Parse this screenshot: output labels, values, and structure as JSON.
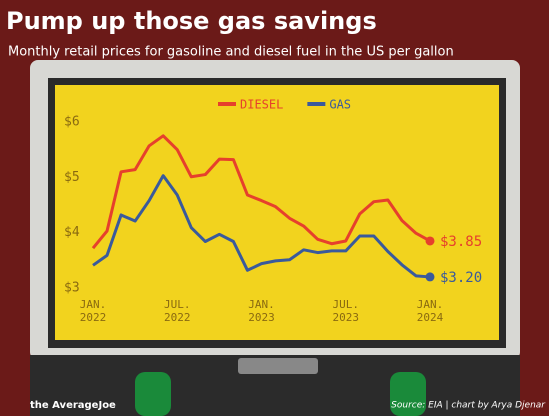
{
  "chart_data": {
    "type": "line",
    "title": "Pump up those gas savings",
    "subtitle": "Monthly retail prices for gasoline and diesel fuel in the US per gallon",
    "categories": [
      "JAN. 2022",
      null,
      null,
      null,
      null,
      null,
      "JUL. 2022",
      null,
      null,
      null,
      null,
      null,
      "JAN. 2023",
      null,
      null,
      null,
      null,
      null,
      "JUL. 2023",
      null,
      null,
      null,
      null,
      null,
      "JAN. 2024"
    ],
    "series": [
      {
        "name": "DIESEL",
        "color": "#e6402c",
        "values": [
          3.72,
          4.03,
          5.1,
          5.14,
          5.57,
          5.75,
          5.5,
          5.01,
          5.05,
          5.33,
          5.32,
          4.68,
          4.58,
          4.47,
          4.26,
          4.12,
          3.88,
          3.8,
          3.85,
          4.34,
          4.56,
          4.59,
          4.22,
          3.99,
          3.85
        ],
        "value_labels": [
          null,
          null,
          null,
          null,
          null,
          null,
          null,
          null,
          null,
          null,
          null,
          null,
          null,
          null,
          null,
          null,
          null,
          null,
          null,
          null,
          null,
          null,
          null,
          null,
          "$3.85"
        ]
      },
      {
        "name": "GAS",
        "color": "#3a5a9c",
        "values": [
          3.41,
          3.59,
          4.32,
          4.21,
          4.58,
          5.03,
          4.68,
          4.09,
          3.84,
          3.97,
          3.84,
          3.32,
          3.44,
          3.49,
          3.51,
          3.69,
          3.64,
          3.67,
          3.67,
          3.94,
          3.94,
          3.66,
          3.42,
          3.22,
          3.2
        ],
        "value_labels": [
          null,
          null,
          null,
          null,
          null,
          null,
          null,
          null,
          null,
          null,
          null,
          null,
          null,
          null,
          null,
          null,
          null,
          null,
          null,
          null,
          null,
          null,
          null,
          null,
          "$3.20"
        ]
      }
    ],
    "ylim": [
      3,
      6
    ],
    "yticks": [
      {
        "value": 3,
        "label": "$3"
      },
      {
        "value": 4,
        "label": "$4"
      },
      {
        "value": 5,
        "label": "$5"
      },
      {
        "value": 6,
        "label": "$6"
      }
    ],
    "source": "Source: EIA | chart by Arya Djenar",
    "brand": "the AverageJoe"
  }
}
